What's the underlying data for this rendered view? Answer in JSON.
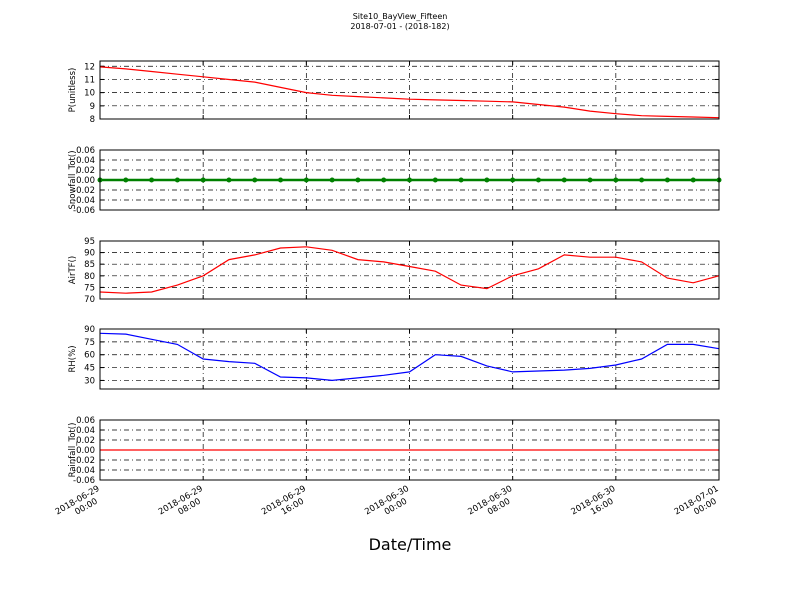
{
  "chart_data": [
    {
      "type": "line",
      "title": "Site10_BayView_Fifteen",
      "subtitle": "2018-07-01 - (2018-182)",
      "ylabel": "P(unitless)",
      "color": "#ff0000",
      "grid": true,
      "x": [
        "2018-06-29 00:00",
        "2018-06-29 02:00",
        "2018-06-29 04:00",
        "2018-06-29 06:00",
        "2018-06-29 08:00",
        "2018-06-29 10:00",
        "2018-06-29 12:00",
        "2018-06-29 14:00",
        "2018-06-29 16:00",
        "2018-06-29 18:00",
        "2018-06-29 20:00",
        "2018-06-29 22:00",
        "2018-06-30 00:00",
        "2018-06-30 02:00",
        "2018-06-30 04:00",
        "2018-06-30 06:00",
        "2018-06-30 08:00",
        "2018-06-30 10:00",
        "2018-06-30 12:00",
        "2018-06-30 14:00",
        "2018-06-30 16:00",
        "2018-06-30 18:00",
        "2018-06-30 20:00",
        "2018-06-30 22:00",
        "2018-07-01 00:00"
      ],
      "values": [
        11.95,
        11.8,
        11.6,
        11.4,
        11.2,
        11.0,
        10.8,
        10.4,
        10.0,
        9.8,
        9.7,
        9.6,
        9.5,
        9.45,
        9.4,
        9.35,
        9.3,
        9.1,
        8.9,
        8.6,
        8.4,
        8.25,
        8.2,
        8.15,
        8.1
      ],
      "xlim": [
        "2018-06-29 00:00",
        "2018-07-01 00:00"
      ],
      "xticks": [
        "2018-06-29 00:00",
        "2018-06-29 08:00",
        "2018-06-29 16:00",
        "2018-06-30 00:00",
        "2018-06-30 08:00",
        "2018-06-30 16:00",
        "2018-07-01 00:00"
      ],
      "ylim": [
        8,
        12.4
      ],
      "yticks": [
        8,
        9,
        10,
        11,
        12
      ]
    },
    {
      "type": "line",
      "ylabel": "Snowfall_Tot()",
      "color": "#008000",
      "markers": true,
      "grid": true,
      "x": [
        "2018-06-29 00:00",
        "2018-06-29 02:00",
        "2018-06-29 04:00",
        "2018-06-29 06:00",
        "2018-06-29 08:00",
        "2018-06-29 10:00",
        "2018-06-29 12:00",
        "2018-06-29 14:00",
        "2018-06-29 16:00",
        "2018-06-29 18:00",
        "2018-06-29 20:00",
        "2018-06-29 22:00",
        "2018-06-30 00:00",
        "2018-06-30 02:00",
        "2018-06-30 04:00",
        "2018-06-30 06:00",
        "2018-06-30 08:00",
        "2018-06-30 10:00",
        "2018-06-30 12:00",
        "2018-06-30 14:00",
        "2018-06-30 16:00",
        "2018-06-30 18:00",
        "2018-06-30 20:00",
        "2018-06-30 22:00",
        "2018-07-01 00:00"
      ],
      "values": [
        0,
        0,
        0,
        0,
        0,
        0,
        0,
        0,
        0,
        0,
        0,
        0,
        0,
        0,
        0,
        0,
        0,
        0,
        0,
        0,
        0,
        0,
        0,
        0,
        0
      ],
      "xlim": [
        "2018-06-29 00:00",
        "2018-07-01 00:00"
      ],
      "xticks": [
        "2018-06-29 00:00",
        "2018-06-29 08:00",
        "2018-06-29 16:00",
        "2018-06-30 00:00",
        "2018-06-30 08:00",
        "2018-06-30 16:00",
        "2018-07-01 00:00"
      ],
      "ylim": [
        -0.06,
        0.06
      ],
      "yticks": [
        -0.06,
        -0.04,
        -0.02,
        {
          "value": 0,
          "label": "0.00"
        },
        0.02,
        0.04,
        0.06
      ]
    },
    {
      "type": "line",
      "ylabel": "AirTF()",
      "color": "#ff0000",
      "grid": true,
      "x": [
        "2018-06-29 00:00",
        "2018-06-29 02:00",
        "2018-06-29 04:00",
        "2018-06-29 06:00",
        "2018-06-29 08:00",
        "2018-06-29 10:00",
        "2018-06-29 12:00",
        "2018-06-29 14:00",
        "2018-06-29 16:00",
        "2018-06-29 18:00",
        "2018-06-29 20:00",
        "2018-06-29 22:00",
        "2018-06-30 00:00",
        "2018-06-30 02:00",
        "2018-06-30 04:00",
        "2018-06-30 06:00",
        "2018-06-30 08:00",
        "2018-06-30 10:00",
        "2018-06-30 12:00",
        "2018-06-30 14:00",
        "2018-06-30 16:00",
        "2018-06-30 18:00",
        "2018-06-30 20:00",
        "2018-06-30 22:00",
        "2018-07-01 00:00"
      ],
      "values": [
        73,
        72.5,
        73,
        76,
        80,
        87,
        89,
        92,
        92.5,
        91,
        87,
        86,
        84,
        82,
        76,
        74.5,
        80,
        83,
        89,
        88,
        88,
        86,
        79,
        77,
        80
      ],
      "xlim": [
        "2018-06-29 00:00",
        "2018-07-01 00:00"
      ],
      "xticks": [
        "2018-06-29 00:00",
        "2018-06-29 08:00",
        "2018-06-29 16:00",
        "2018-06-30 00:00",
        "2018-06-30 08:00",
        "2018-06-30 16:00",
        "2018-07-01 00:00"
      ],
      "ylim": [
        70,
        95
      ],
      "yticks": [
        70,
        75,
        80,
        85,
        90,
        95
      ]
    },
    {
      "type": "line",
      "ylabel": "RH(%)",
      "color": "#0000ff",
      "grid": true,
      "x": [
        "2018-06-29 00:00",
        "2018-06-29 02:00",
        "2018-06-29 04:00",
        "2018-06-29 06:00",
        "2018-06-29 08:00",
        "2018-06-29 10:00",
        "2018-06-29 12:00",
        "2018-06-29 14:00",
        "2018-06-29 16:00",
        "2018-06-29 18:00",
        "2018-06-29 20:00",
        "2018-06-29 22:00",
        "2018-06-30 00:00",
        "2018-06-30 02:00",
        "2018-06-30 04:00",
        "2018-06-30 06:00",
        "2018-06-30 08:00",
        "2018-06-30 10:00",
        "2018-06-30 12:00",
        "2018-06-30 14:00",
        "2018-06-30 16:00",
        "2018-06-30 18:00",
        "2018-06-30 20:00",
        "2018-06-30 22:00",
        "2018-07-01 00:00"
      ],
      "values": [
        85,
        84,
        78,
        72,
        55,
        52,
        50,
        34,
        33,
        30,
        33,
        36,
        40,
        60,
        58,
        47,
        40,
        41,
        42,
        44,
        48,
        55,
        72,
        72,
        67
      ],
      "xlim": [
        "2018-06-29 00:00",
        "2018-07-01 00:00"
      ],
      "xticks": [
        "2018-06-29 00:00",
        "2018-06-29 08:00",
        "2018-06-29 16:00",
        "2018-06-30 00:00",
        "2018-06-30 08:00",
        "2018-06-30 16:00",
        "2018-07-01 00:00"
      ],
      "ylim": [
        20,
        90
      ],
      "yticks": [
        30,
        45,
        60,
        75,
        90
      ]
    },
    {
      "type": "line",
      "ylabel": "Rainfall_Tot()",
      "xlabel": "Date/Time",
      "color": "#ff0000",
      "grid": true,
      "x": [
        "2018-06-29 00:00",
        "2018-06-29 02:00",
        "2018-06-29 04:00",
        "2018-06-29 06:00",
        "2018-06-29 08:00",
        "2018-06-29 10:00",
        "2018-06-29 12:00",
        "2018-06-29 14:00",
        "2018-06-29 16:00",
        "2018-06-29 18:00",
        "2018-06-29 20:00",
        "2018-06-29 22:00",
        "2018-06-30 00:00",
        "2018-06-30 02:00",
        "2018-06-30 04:00",
        "2018-06-30 06:00",
        "2018-06-30 08:00",
        "2018-06-30 10:00",
        "2018-06-30 12:00",
        "2018-06-30 14:00",
        "2018-06-30 16:00",
        "2018-06-30 18:00",
        "2018-06-30 20:00",
        "2018-06-30 22:00",
        "2018-07-01 00:00"
      ],
      "values": [
        0,
        0,
        0,
        0,
        0,
        0,
        0,
        0,
        0,
        0,
        0,
        0,
        0,
        0,
        0,
        0,
        0,
        0,
        0,
        0,
        0,
        0,
        0,
        0,
        0
      ],
      "xlim": [
        "2018-06-29 00:00",
        "2018-07-01 00:00"
      ],
      "xticks": [
        "2018-06-29 00:00",
        "2018-06-29 08:00",
        "2018-06-29 16:00",
        "2018-06-30 00:00",
        "2018-06-30 08:00",
        "2018-06-30 16:00",
        "2018-07-01 00:00"
      ],
      "ylim": [
        -0.06,
        0.06
      ],
      "yticks": [
        -0.06,
        -0.04,
        -0.02,
        {
          "value": 0,
          "label": "0.00"
        },
        0.02,
        0.04,
        0.06
      ]
    }
  ]
}
